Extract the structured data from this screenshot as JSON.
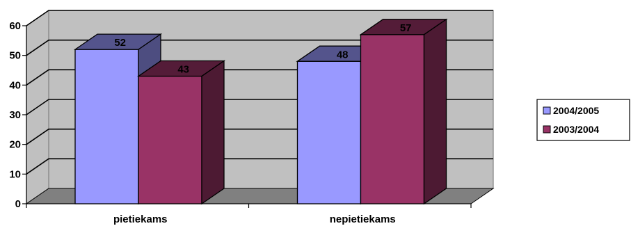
{
  "chart_data": {
    "type": "bar",
    "title": "",
    "xlabel": "",
    "ylabel": "",
    "categories": [
      "pietiekams",
      "nepietiekams"
    ],
    "series": [
      {
        "name": "2004/2005",
        "values": [
          52,
          48
        ],
        "color": "#9999ff"
      },
      {
        "name": "2003/2004",
        "values": [
          43,
          57
        ],
        "color": "#993366"
      }
    ],
    "ylim": [
      0,
      60
    ],
    "yticks": [
      "0",
      "10",
      "20",
      "30",
      "40",
      "50",
      "60"
    ],
    "grid": true,
    "three_d": true,
    "data_labels": true,
    "legend_position": "right",
    "wall_color": "#c0c0c0",
    "floor_color": "#808080"
  }
}
